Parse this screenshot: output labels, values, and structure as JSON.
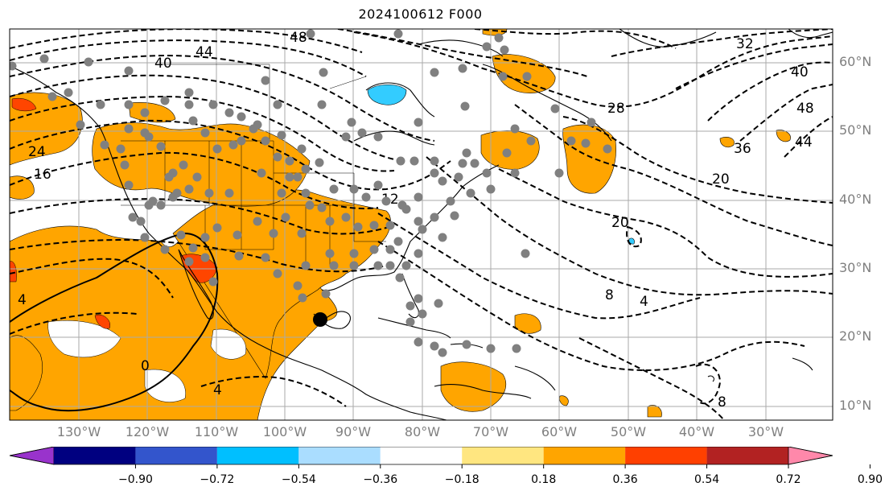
{
  "title": "2024100612 F000",
  "lat_labels": [
    "60°N",
    "50°N",
    "40°N",
    "30°N",
    "20°N",
    "10°N"
  ],
  "lon_labels": [
    "130°W",
    "120°W",
    "110°W",
    "100°W",
    "90°W",
    "80°W",
    "70°W",
    "60°W",
    "50°W",
    "40°W",
    "30°W"
  ],
  "contour_labels": [
    "48",
    "44",
    "40",
    "24",
    "16",
    "12",
    "28",
    "32",
    "40",
    "48",
    "36",
    "44",
    "20",
    "20",
    "8",
    "4",
    "4",
    "0",
    "4",
    "8"
  ],
  "colorbar": {
    "colors": [
      "#9933cc",
      "#000080",
      "#3355cc",
      "#00bfff",
      "#aaddff",
      "#ffffff",
      "#ffe680",
      "#ffa500",
      "#ff4000",
      "#b22222",
      "#ff88aa"
    ],
    "tick_labels": [
      "−0.90",
      "−0.72",
      "−0.54",
      "−0.36",
      "−0.18",
      "0.18",
      "0.36",
      "0.54",
      "0.72",
      "0.90"
    ]
  },
  "colors": {
    "positive_fill": "#ffa500",
    "strong_fill": "#ff4500",
    "negative_fill": "#33ccff",
    "station": "#808080",
    "center_marker": "#000000"
  }
}
